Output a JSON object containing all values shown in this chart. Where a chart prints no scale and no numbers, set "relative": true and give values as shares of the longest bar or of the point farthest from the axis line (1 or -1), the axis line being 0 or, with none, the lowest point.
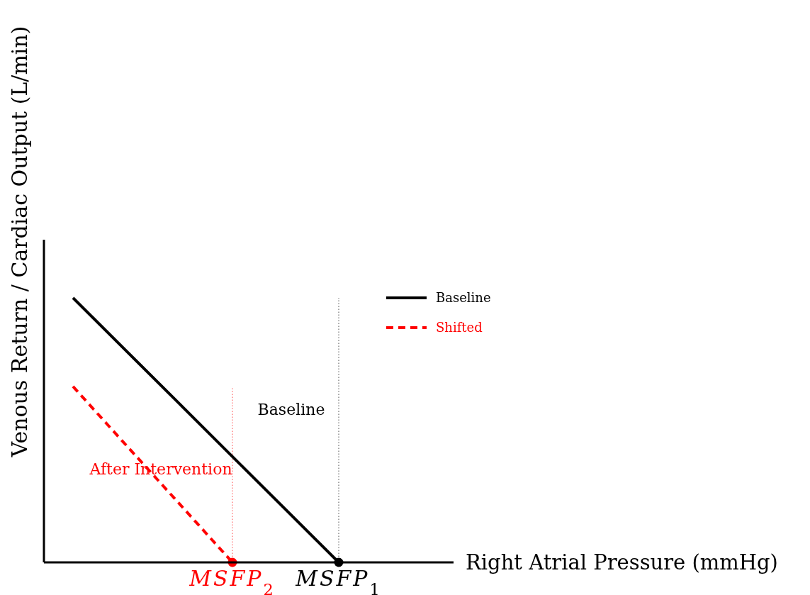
{
  "chart_data": {
    "type": "line",
    "relative": true,
    "xlabel": "Right Atrial Pressure (mmHg)",
    "ylabel": "Venous Return / Cardiac Output (L/min)",
    "categories": [
      null,
      null,
      null,
      "MSFP$_{2}$",
      null,
      "MSFP$_{1}$"
    ],
    "series": [
      {
        "name": "Baseline",
        "color": "#000000",
        "values": [
          1,
          0.8,
          0.6,
          0.4,
          0.2,
          0
        ],
        "line_style": "solid",
        "marker": "none"
      },
      {
        "name": "Shifted",
        "color": "#ff0000",
        "values": [
          0.665,
          0.443,
          0.222,
          0,
          null,
          null
        ],
        "line_style": "dashed",
        "marker": "none"
      },
      {
        "type": "scatter",
        "color": "#000000",
        "values": [
          null,
          null,
          null,
          null,
          null,
          0
        ],
        "marker": "circle"
      },
      {
        "type": "scatter",
        "color": "#ff0000",
        "values": [
          null,
          null,
          null,
          0,
          null,
          null
        ],
        "marker": "circle"
      }
    ],
    "ref_lines": [
      {
        "axis": "x",
        "value": "MSFP$_{1}$",
        "color": "#000000",
        "line_style": "dotted"
      },
      {
        "axis": "x",
        "value": "MSFP$_{2}$",
        "color": "#ff0000",
        "line_style": "dotted"
      }
    ],
    "annotations": [
      "Baseline",
      "After Intervention"
    ],
    "legend": "top right"
  }
}
